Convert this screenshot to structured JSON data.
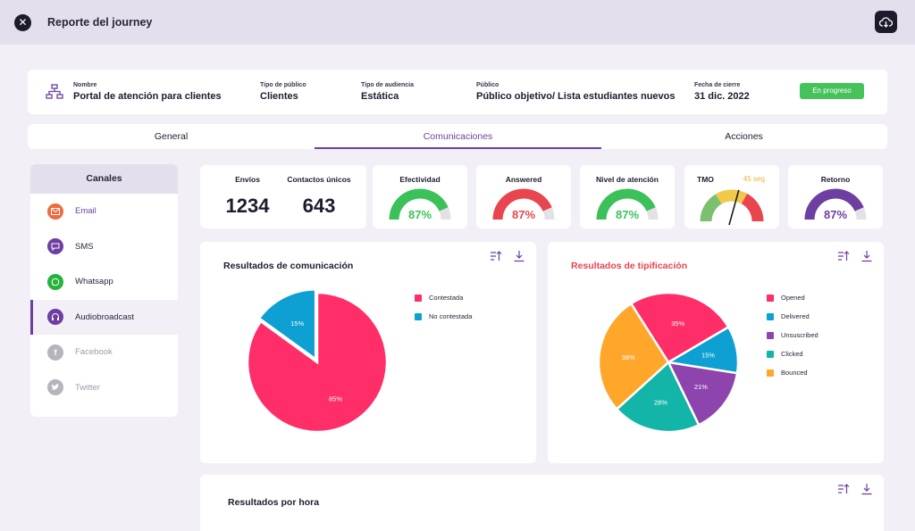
{
  "header": {
    "title": "Reporte del journey"
  },
  "info": {
    "fields": [
      {
        "label": "Nombre",
        "value": "Portal de atención para clientes"
      },
      {
        "label": "Tipo de público",
        "value": "Clientes"
      },
      {
        "label": "Tipo de audiencia",
        "value": "Estática"
      },
      {
        "label": "Público",
        "value": "Público objetivo/ Lista estudiantes nuevos"
      },
      {
        "label": "Fecha de cierre",
        "value": "31 dic. 2022"
      }
    ],
    "status": "En progreso"
  },
  "tabs": [
    "General",
    "Comunicaciones",
    "Acciones"
  ],
  "active_tab": "Comunicaciones",
  "channels": {
    "title": "Canales",
    "items": [
      {
        "label": "Email",
        "icon": "email-icon",
        "color": "#f06a3b"
      },
      {
        "label": "SMS",
        "icon": "sms-icon",
        "color": "#6d3fa0"
      },
      {
        "label": "Whatsapp",
        "icon": "whatsapp-icon",
        "color": "#25b33a"
      },
      {
        "label": "Audiobroadcast",
        "icon": "headphones-icon",
        "color": "#6d3fa0"
      },
      {
        "label": "Facebook",
        "icon": "facebook-icon",
        "color": "#b7b4bd"
      },
      {
        "label": "Twitter",
        "icon": "twitter-icon",
        "color": "#b7b4bd"
      }
    ]
  },
  "kpis": {
    "envios": {
      "title": "Envíos",
      "value": "1234"
    },
    "contactos": {
      "title": "Contactos únicos",
      "value": "643"
    },
    "gauges": [
      {
        "title": "Efectividad",
        "value": "87%",
        "fraction": 0.87,
        "color": "#3cc15a"
      },
      {
        "title": "Answered",
        "value": "87%",
        "fraction": 0.87,
        "color": "#e8454f"
      },
      {
        "title": "Nivel de atención",
        "value": "87%",
        "fraction": 0.87,
        "color": "#3cc15a"
      },
      {
        "title": "Retorno",
        "value": "87%",
        "fraction": 0.87,
        "color": "#6d3fa0"
      }
    ],
    "tmo": {
      "title": "TMO",
      "seg": "45 seg.",
      "colors": [
        "#7cc06f",
        "#f2c84b",
        "#e8454f"
      ]
    }
  },
  "panels": {
    "comunicacion": {
      "title": "Resultados de comunicación"
    },
    "tipificacion": {
      "title": "Resultados de tipificación",
      "title_color": "#e8454f"
    },
    "hora": {
      "title": "Resultados por hora"
    }
  },
  "chart_data": [
    {
      "type": "pie",
      "title": "Resultados de comunicación",
      "categories": [
        "Contestada",
        "No contestada"
      ],
      "values": [
        85,
        15
      ],
      "labels": [
        "85%",
        "15%"
      ],
      "colors": [
        "#ff2d68",
        "#0e9fd3"
      ],
      "legend": "right"
    },
    {
      "type": "pie",
      "title": "Resultados de tipificación",
      "categories": [
        "Opened",
        "Delivered",
        "Unsuscribed",
        "Clicked",
        "Bounced"
      ],
      "values": [
        35,
        15,
        21,
        28,
        38
      ],
      "labels": [
        "35%",
        "15%",
        "21%",
        "28%",
        "38%"
      ],
      "colors": [
        "#ff2d68",
        "#0e9fd3",
        "#8e44ad",
        "#13b5a8",
        "#ffa62b"
      ],
      "legend": "right"
    }
  ]
}
